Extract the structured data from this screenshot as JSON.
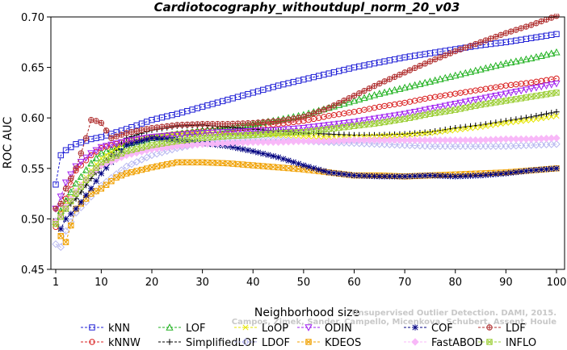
{
  "chart_data": {
    "type": "line",
    "title": "Cardiotocography_withoutdupl_norm_20_v03",
    "xlabel": "Neighborhood size",
    "ylabel": "ROC AUC",
    "xlim": [
      1,
      100
    ],
    "ylim": [
      0.45,
      0.7
    ],
    "xticks": [
      1,
      10,
      20,
      30,
      40,
      50,
      60,
      70,
      80,
      90,
      100
    ],
    "yticks": [
      "0.45",
      "0.50",
      "0.55",
      "0.60",
      "0.65",
      "0.70"
    ],
    "grid": false,
    "legend_position": "bottom",
    "credit": [
      "Unsupervised Outlier Detection. DAMI, 2015.",
      "Campos, Zimek, Sander, Campello, Micenkova, Schubert, Assent, Houle"
    ],
    "series": [
      {
        "name": "kNN",
        "color": "#1f1fd6",
        "marker": "square",
        "points": [
          [
            1,
            0.534
          ],
          [
            2,
            0.563
          ],
          [
            3,
            0.568
          ],
          [
            5,
            0.574
          ],
          [
            8,
            0.579
          ],
          [
            10,
            0.581
          ],
          [
            15,
            0.589
          ],
          [
            20,
            0.598
          ],
          [
            25,
            0.604
          ],
          [
            30,
            0.611
          ],
          [
            35,
            0.618
          ],
          [
            40,
            0.625
          ],
          [
            45,
            0.632
          ],
          [
            50,
            0.638
          ],
          [
            55,
            0.644
          ],
          [
            60,
            0.65
          ],
          [
            65,
            0.655
          ],
          [
            70,
            0.66
          ],
          [
            75,
            0.664
          ],
          [
            80,
            0.668
          ],
          [
            85,
            0.672
          ],
          [
            90,
            0.675
          ],
          [
            95,
            0.679
          ],
          [
            100,
            0.683
          ]
        ]
      },
      {
        "name": "kNNW",
        "color": "#d92020",
        "marker": "circle",
        "points": [
          [
            1,
            0.492
          ],
          [
            2,
            0.505
          ],
          [
            3,
            0.52
          ],
          [
            5,
            0.548
          ],
          [
            8,
            0.563
          ],
          [
            10,
            0.57
          ],
          [
            15,
            0.577
          ],
          [
            20,
            0.581
          ],
          [
            25,
            0.584
          ],
          [
            30,
            0.587
          ],
          [
            35,
            0.589
          ],
          [
            40,
            0.591
          ],
          [
            45,
            0.594
          ],
          [
            50,
            0.597
          ],
          [
            55,
            0.602
          ],
          [
            60,
            0.606
          ],
          [
            65,
            0.611
          ],
          [
            70,
            0.615
          ],
          [
            75,
            0.62
          ],
          [
            80,
            0.624
          ],
          [
            85,
            0.628
          ],
          [
            90,
            0.632
          ],
          [
            95,
            0.635
          ],
          [
            100,
            0.639
          ]
        ]
      },
      {
        "name": "LOF",
        "color": "#22b222",
        "marker": "triangle",
        "points": [
          [
            1,
            0.497
          ],
          [
            2,
            0.508
          ],
          [
            3,
            0.518
          ],
          [
            5,
            0.535
          ],
          [
            8,
            0.555
          ],
          [
            10,
            0.565
          ],
          [
            15,
            0.574
          ],
          [
            20,
            0.58
          ],
          [
            25,
            0.584
          ],
          [
            30,
            0.587
          ],
          [
            35,
            0.59
          ],
          [
            40,
            0.594
          ],
          [
            45,
            0.598
          ],
          [
            50,
            0.603
          ],
          [
            55,
            0.61
          ],
          [
            60,
            0.617
          ],
          [
            65,
            0.624
          ],
          [
            70,
            0.63
          ],
          [
            75,
            0.636
          ],
          [
            80,
            0.642
          ],
          [
            85,
            0.648
          ],
          [
            90,
            0.654
          ],
          [
            95,
            0.659
          ],
          [
            100,
            0.665
          ]
        ]
      },
      {
        "name": "SimplifiedLOF",
        "color": "#000000",
        "marker": "plus",
        "points": [
          [
            1,
            0.497
          ],
          [
            2,
            0.503
          ],
          [
            3,
            0.51
          ],
          [
            5,
            0.52
          ],
          [
            8,
            0.54
          ],
          [
            10,
            0.552
          ],
          [
            15,
            0.58
          ],
          [
            20,
            0.588
          ],
          [
            25,
            0.592
          ],
          [
            30,
            0.593
          ],
          [
            35,
            0.591
          ],
          [
            40,
            0.589
          ],
          [
            45,
            0.587
          ],
          [
            50,
            0.585
          ],
          [
            55,
            0.584
          ],
          [
            60,
            0.583
          ],
          [
            65,
            0.583
          ],
          [
            70,
            0.584
          ],
          [
            75,
            0.586
          ],
          [
            80,
            0.59
          ],
          [
            85,
            0.593
          ],
          [
            90,
            0.597
          ],
          [
            95,
            0.601
          ],
          [
            100,
            0.606
          ]
        ]
      },
      {
        "name": "LoOP",
        "color": "#e6e600",
        "marker": "x",
        "points": [
          [
            1,
            0.498
          ],
          [
            2,
            0.506
          ],
          [
            3,
            0.514
          ],
          [
            5,
            0.528
          ],
          [
            8,
            0.548
          ],
          [
            10,
            0.56
          ],
          [
            15,
            0.576
          ],
          [
            20,
            0.581
          ],
          [
            25,
            0.584
          ],
          [
            30,
            0.585
          ],
          [
            35,
            0.585
          ],
          [
            40,
            0.584
          ],
          [
            45,
            0.583
          ],
          [
            50,
            0.582
          ],
          [
            55,
            0.581
          ],
          [
            60,
            0.581
          ],
          [
            65,
            0.582
          ],
          [
            70,
            0.583
          ],
          [
            75,
            0.585
          ],
          [
            80,
            0.588
          ],
          [
            85,
            0.591
          ],
          [
            90,
            0.595
          ],
          [
            95,
            0.598
          ],
          [
            100,
            0.602
          ]
        ]
      },
      {
        "name": "LDOF",
        "color": "#b8b8f0",
        "marker": "diamond",
        "points": [
          [
            1,
            0.475
          ],
          [
            2,
            0.472
          ],
          [
            3,
            0.488
          ],
          [
            5,
            0.506
          ],
          [
            8,
            0.522
          ],
          [
            10,
            0.533
          ],
          [
            15,
            0.552
          ],
          [
            20,
            0.563
          ],
          [
            25,
            0.57
          ],
          [
            30,
            0.575
          ],
          [
            35,
            0.577
          ],
          [
            40,
            0.578
          ],
          [
            45,
            0.578
          ],
          [
            50,
            0.577
          ],
          [
            55,
            0.576
          ],
          [
            60,
            0.575
          ],
          [
            65,
            0.574
          ],
          [
            70,
            0.573
          ],
          [
            75,
            0.572
          ],
          [
            80,
            0.572
          ],
          [
            85,
            0.572
          ],
          [
            90,
            0.572
          ],
          [
            95,
            0.573
          ],
          [
            100,
            0.574
          ]
        ]
      },
      {
        "name": "ODIN",
        "color": "#a020f0",
        "marker": "triangle-down",
        "points": [
          [
            1,
            0.51
          ],
          [
            2,
            0.522
          ],
          [
            3,
            0.536
          ],
          [
            5,
            0.552
          ],
          [
            8,
            0.565
          ],
          [
            10,
            0.571
          ],
          [
            15,
            0.577
          ],
          [
            20,
            0.581
          ],
          [
            25,
            0.583
          ],
          [
            30,
            0.585
          ],
          [
            35,
            0.586
          ],
          [
            40,
            0.587
          ],
          [
            45,
            0.588
          ],
          [
            50,
            0.59
          ],
          [
            55,
            0.593
          ],
          [
            60,
            0.596
          ],
          [
            65,
            0.6
          ],
          [
            70,
            0.604
          ],
          [
            75,
            0.609
          ],
          [
            80,
            0.614
          ],
          [
            85,
            0.619
          ],
          [
            90,
            0.624
          ],
          [
            95,
            0.629
          ],
          [
            100,
            0.634
          ]
        ]
      },
      {
        "name": "KDEOS",
        "color": "#f0a000",
        "marker": "square-x",
        "points": [
          [
            1,
            0.497
          ],
          [
            2,
            0.483
          ],
          [
            3,
            0.477
          ],
          [
            5,
            0.51
          ],
          [
            8,
            0.525
          ],
          [
            10,
            0.53
          ],
          [
            13,
            0.541
          ],
          [
            15,
            0.545
          ],
          [
            20,
            0.551
          ],
          [
            25,
            0.556
          ],
          [
            30,
            0.556
          ],
          [
            35,
            0.555
          ],
          [
            40,
            0.553
          ],
          [
            45,
            0.551
          ],
          [
            50,
            0.549
          ],
          [
            55,
            0.546
          ],
          [
            60,
            0.543
          ],
          [
            65,
            0.543
          ],
          [
            70,
            0.542
          ],
          [
            75,
            0.543
          ],
          [
            80,
            0.544
          ],
          [
            85,
            0.545
          ],
          [
            90,
            0.546
          ],
          [
            95,
            0.548
          ],
          [
            100,
            0.55
          ]
        ]
      },
      {
        "name": "COF",
        "color": "#000080",
        "marker": "asterisk",
        "points": [
          [
            1,
            0.498
          ],
          [
            2,
            0.49
          ],
          [
            3,
            0.5
          ],
          [
            5,
            0.51
          ],
          [
            8,
            0.53
          ],
          [
            10,
            0.545
          ],
          [
            15,
            0.573
          ],
          [
            20,
            0.58
          ],
          [
            25,
            0.578
          ],
          [
            30,
            0.575
          ],
          [
            35,
            0.572
          ],
          [
            40,
            0.567
          ],
          [
            45,
            0.561
          ],
          [
            50,
            0.553
          ],
          [
            55,
            0.546
          ],
          [
            60,
            0.543
          ],
          [
            65,
            0.542
          ],
          [
            70,
            0.542
          ],
          [
            75,
            0.543
          ],
          [
            80,
            0.542
          ],
          [
            85,
            0.543
          ],
          [
            90,
            0.545
          ],
          [
            95,
            0.548
          ],
          [
            100,
            0.55
          ]
        ]
      },
      {
        "name": "FastABOD",
        "color": "#f8b8f8",
        "marker": "diamond-filled",
        "points": [
          [
            1,
            0.497
          ],
          [
            2,
            0.503
          ],
          [
            3,
            0.512
          ],
          [
            5,
            0.527
          ],
          [
            8,
            0.545
          ],
          [
            10,
            0.553
          ],
          [
            15,
            0.563
          ],
          [
            20,
            0.569
          ],
          [
            25,
            0.572
          ],
          [
            30,
            0.574
          ],
          [
            35,
            0.575
          ],
          [
            40,
            0.576
          ],
          [
            45,
            0.576
          ],
          [
            50,
            0.577
          ],
          [
            55,
            0.577
          ],
          [
            60,
            0.578
          ],
          [
            65,
            0.578
          ],
          [
            70,
            0.578
          ],
          [
            75,
            0.578
          ],
          [
            80,
            0.578
          ],
          [
            85,
            0.578
          ],
          [
            90,
            0.579
          ],
          [
            95,
            0.579
          ],
          [
            100,
            0.58
          ]
        ]
      },
      {
        "name": "LDF",
        "color": "#b03030",
        "marker": "circle-plus",
        "points": [
          [
            1,
            0.51
          ],
          [
            2,
            0.515
          ],
          [
            3,
            0.53
          ],
          [
            5,
            0.55
          ],
          [
            7,
            0.58
          ],
          [
            8,
            0.598
          ],
          [
            9,
            0.597
          ],
          [
            10,
            0.595
          ],
          [
            12,
            0.58
          ],
          [
            15,
            0.585
          ],
          [
            20,
            0.59
          ],
          [
            25,
            0.593
          ],
          [
            30,
            0.594
          ],
          [
            35,
            0.594
          ],
          [
            40,
            0.595
          ],
          [
            45,
            0.597
          ],
          [
            50,
            0.601
          ],
          [
            55,
            0.61
          ],
          [
            60,
            0.622
          ],
          [
            65,
            0.634
          ],
          [
            70,
            0.645
          ],
          [
            75,
            0.656
          ],
          [
            80,
            0.666
          ],
          [
            85,
            0.675
          ],
          [
            90,
            0.684
          ],
          [
            95,
            0.692
          ],
          [
            100,
            0.701
          ]
        ]
      },
      {
        "name": "INFLO",
        "color": "#9acd32",
        "marker": "square-x",
        "points": [
          [
            1,
            0.495
          ],
          [
            2,
            0.502
          ],
          [
            3,
            0.51
          ],
          [
            5,
            0.525
          ],
          [
            8,
            0.545
          ],
          [
            10,
            0.556
          ],
          [
            15,
            0.567
          ],
          [
            20,
            0.573
          ],
          [
            25,
            0.577
          ],
          [
            30,
            0.58
          ],
          [
            35,
            0.582
          ],
          [
            40,
            0.583
          ],
          [
            45,
            0.585
          ],
          [
            50,
            0.586
          ],
          [
            55,
            0.589
          ],
          [
            60,
            0.592
          ],
          [
            65,
            0.595
          ],
          [
            70,
            0.599
          ],
          [
            75,
            0.604
          ],
          [
            80,
            0.608
          ],
          [
            85,
            0.613
          ],
          [
            90,
            0.617
          ],
          [
            95,
            0.621
          ],
          [
            100,
            0.625
          ]
        ]
      }
    ]
  }
}
